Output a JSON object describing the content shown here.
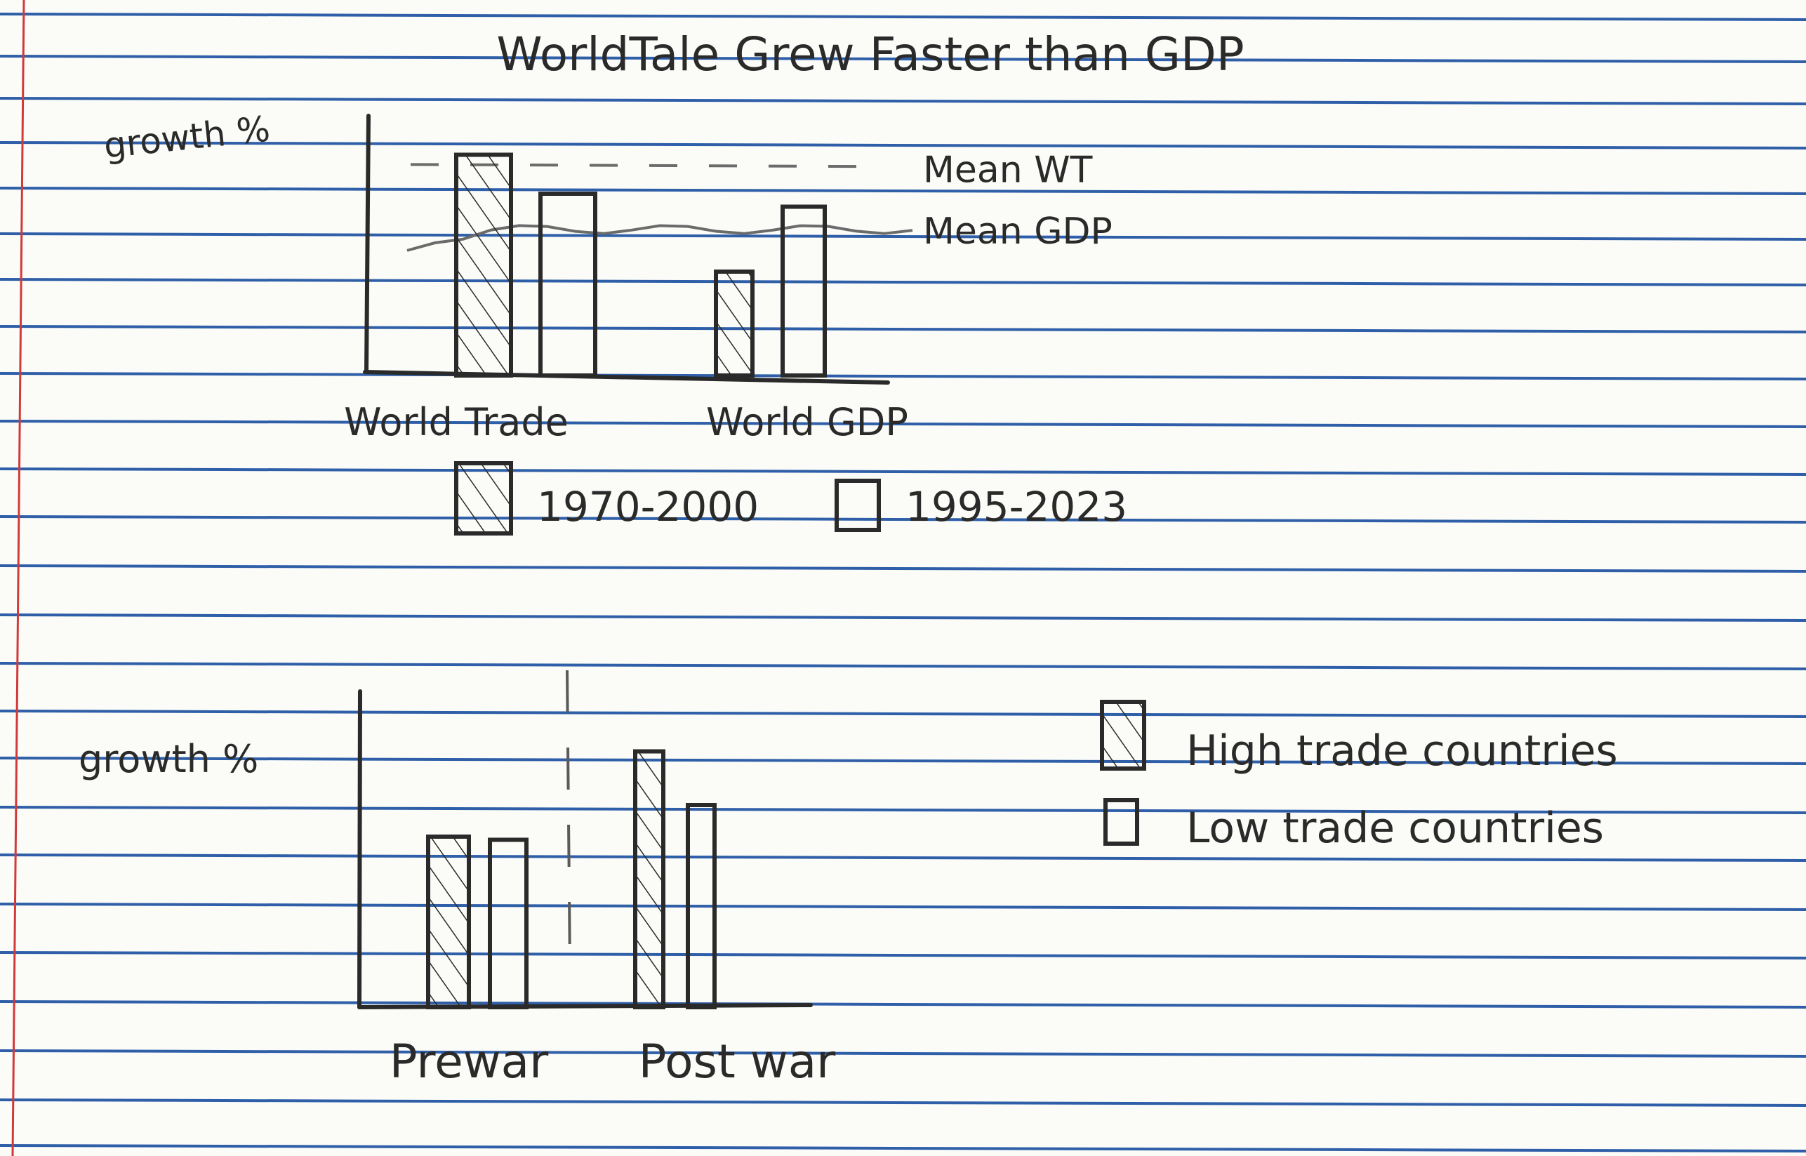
{
  "colors": {
    "paper": "#fbfbf7",
    "rule_line": "#2f5fa8",
    "margin_line": "#d23a3a",
    "ink": "#2a2a2a",
    "pencil": "#6b6b6b"
  },
  "chart_data": [
    {
      "type": "bar",
      "title": "WorldTale Grew Faster than GDP",
      "ylabel": "growth %",
      "xlabel": "",
      "categories": [
        "World Trade",
        "World GDP"
      ],
      "series": [
        {
          "name": "1970-2000",
          "pattern": "hatched",
          "values": [
            6.8,
            3.2
          ]
        },
        {
          "name": "1995-2023",
          "pattern": "open",
          "values": [
            5.6,
            5.2
          ]
        }
      ],
      "ylim": [
        0,
        8
      ],
      "reference_lines": [
        {
          "label": "Mean WT",
          "value": 6.5,
          "style": "dashed"
        },
        {
          "label": "Mean GDP",
          "value": 4.5,
          "style": "wavy"
        }
      ],
      "legend": "bottom",
      "grid": false
    },
    {
      "type": "bar",
      "title": "",
      "ylabel": "growth %",
      "xlabel": "",
      "categories": [
        "Prewar",
        "Post war"
      ],
      "series": [
        {
          "name": "High trade countries",
          "pattern": "hatched",
          "values": [
            5.4,
            8.1
          ]
        },
        {
          "name": "Low trade countries",
          "pattern": "open",
          "values": [
            5.3,
            6.4
          ]
        }
      ],
      "ylim": [
        0,
        10
      ],
      "legend": "right",
      "grid": false
    }
  ]
}
